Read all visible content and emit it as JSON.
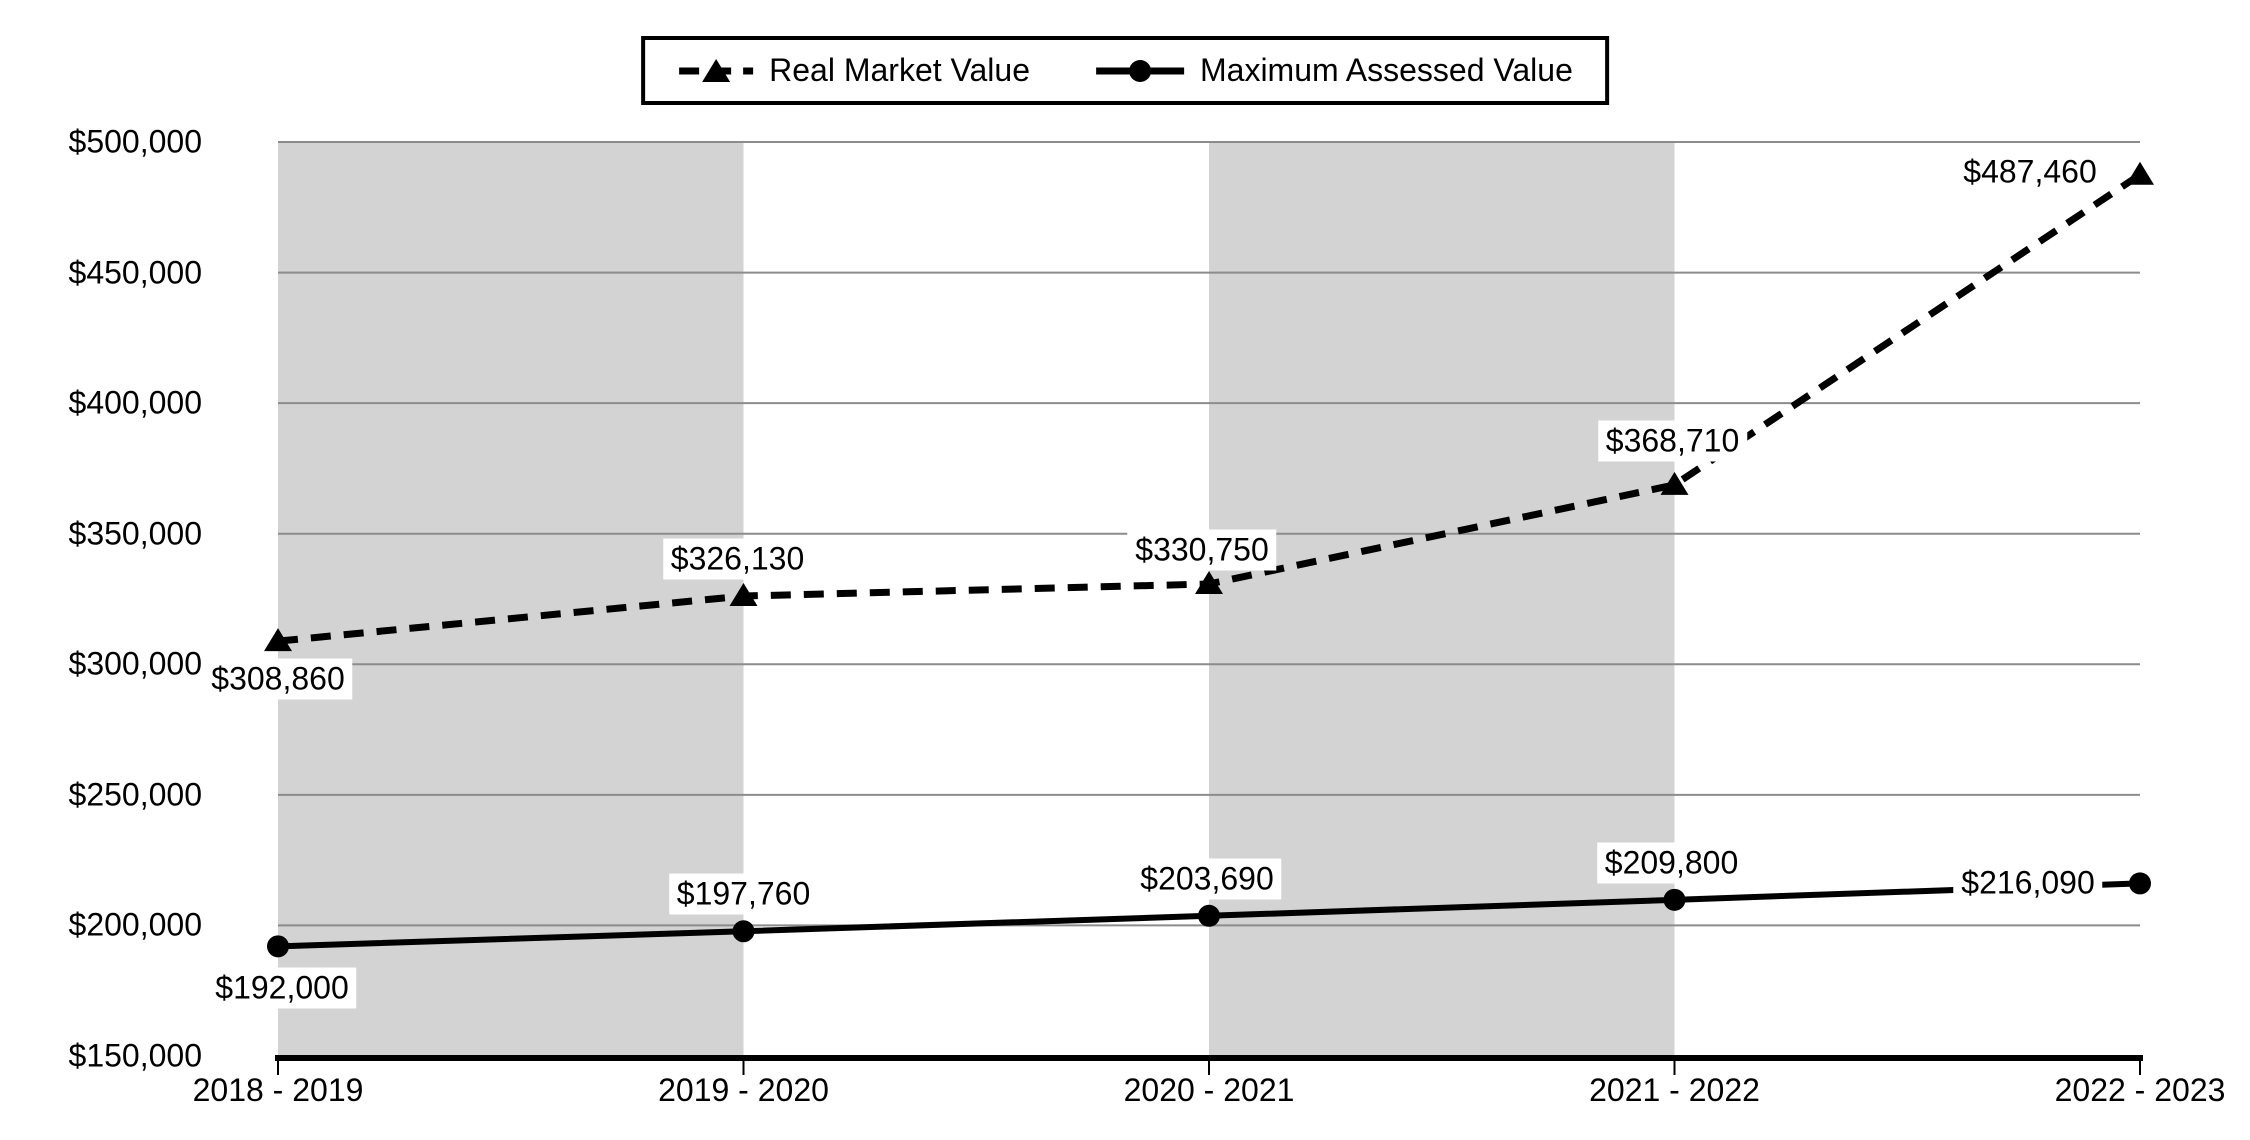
{
  "chart_data": {
    "type": "line",
    "title": "",
    "categories": [
      "2018 - 2019",
      "2019 - 2020",
      "2020 - 2021",
      "2021 - 2022",
      "2022 - 2023"
    ],
    "series": [
      {
        "name": "Real Market Value",
        "values": [
          308860,
          326130,
          330750,
          368710,
          487460
        ],
        "data_labels": [
          "$308,860",
          "$326,130",
          "$330,750",
          "$368,710",
          "$487,460"
        ],
        "line_style": "dashed",
        "marker": "triangle"
      },
      {
        "name": "Maximum Assessed Value",
        "values": [
          192000,
          197760,
          203690,
          209800,
          216090
        ],
        "data_labels": [
          "$192,000",
          "$197,760",
          "$203,690",
          "$209,800",
          "$216,090"
        ],
        "line_style": "solid",
        "marker": "circle"
      }
    ],
    "y_axis": {
      "min": 150000,
      "max": 500000,
      "step": 50000,
      "tick_labels": [
        "$150,000",
        "$200,000",
        "$250,000",
        "$300,000",
        "$350,000",
        "$400,000",
        "$450,000",
        "$500,000"
      ]
    },
    "xlabel": "",
    "ylabel": "",
    "grid": true,
    "legend_position": "top-center",
    "shaded_column_bands": [
      [
        0,
        1
      ],
      [
        2,
        3
      ]
    ],
    "colors": {
      "series": "#000000",
      "gridline": "#8c8c8c",
      "band": "#d3d3d3",
      "background": "#ffffff",
      "label_background": "#ffffff"
    }
  }
}
